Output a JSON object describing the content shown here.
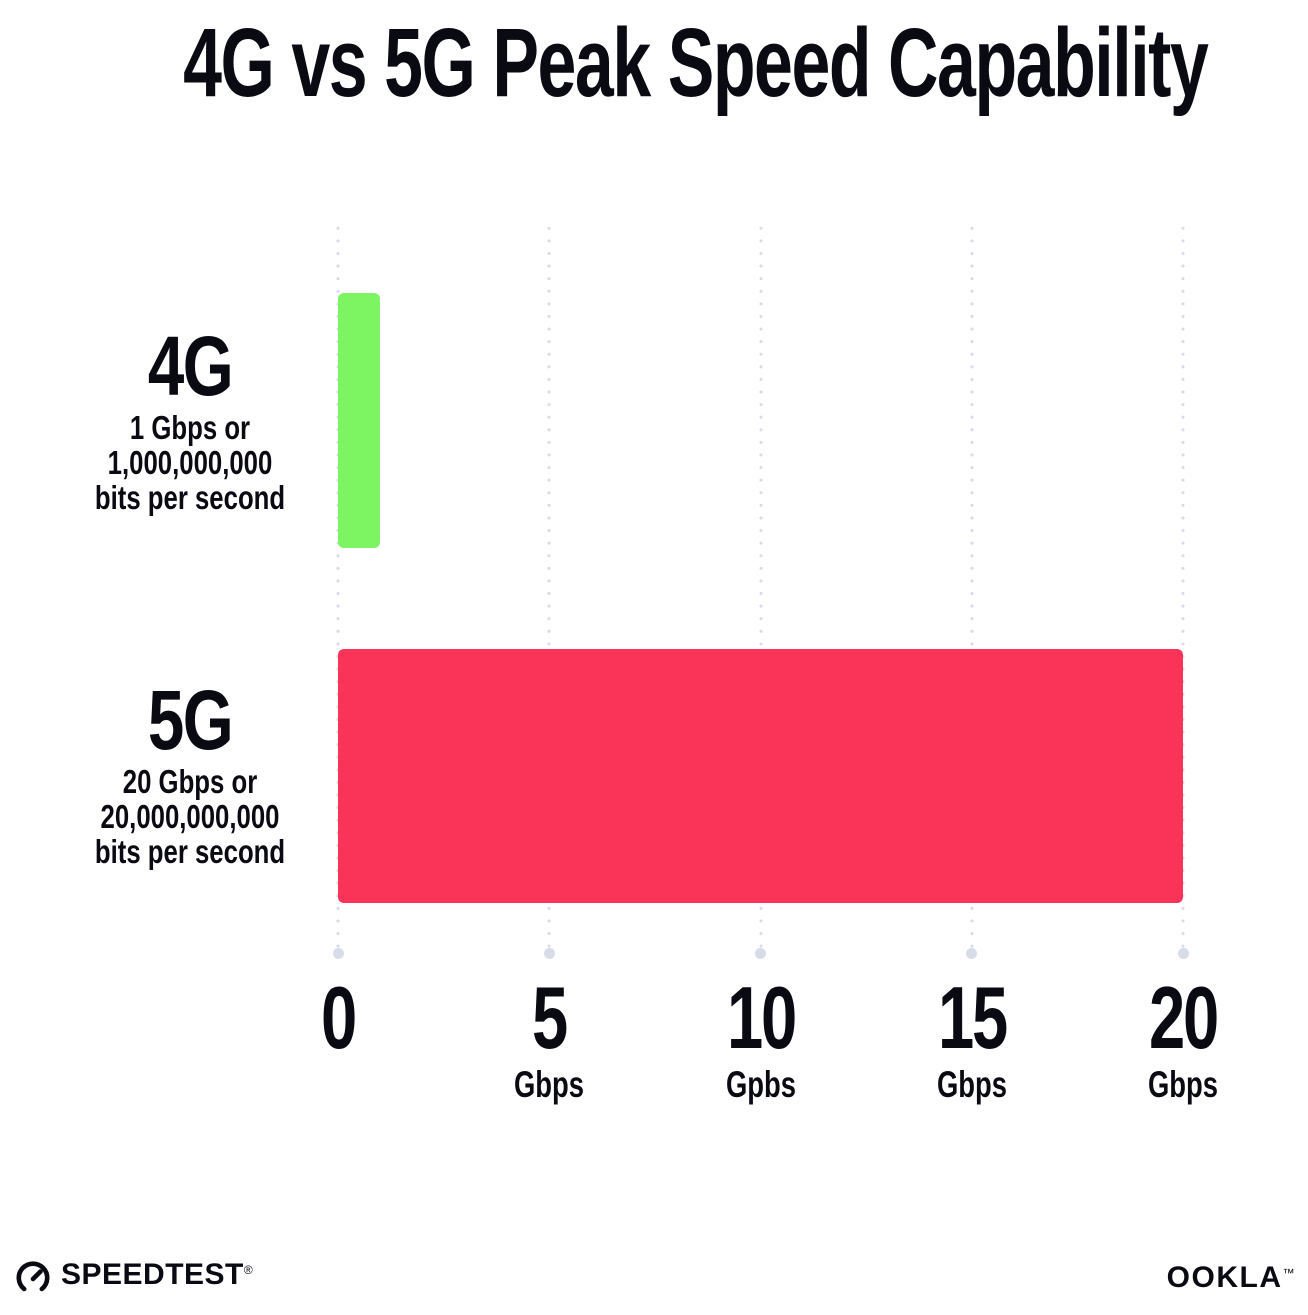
{
  "title": "4G vs 5G Peak Speed Capability",
  "chart_data": {
    "type": "bar",
    "orientation": "horizontal",
    "title": "4G vs 5G Peak Speed Capability",
    "categories": [
      "4G",
      "5G"
    ],
    "values": [
      1,
      20
    ],
    "value_unit": "Gbps",
    "bar_colors": [
      "#7DF562",
      "#FA3359"
    ],
    "row_captions": [
      [
        "1 Gbps or",
        "1,000,000,000",
        "bits per second"
      ],
      [
        "20 Gbps or",
        "20,000,000,000",
        "bits per second"
      ]
    ],
    "xlim": [
      0,
      20
    ],
    "x_ticks": [
      {
        "value": 0,
        "label": "0",
        "unit": ""
      },
      {
        "value": 5,
        "label": "5",
        "unit": "Gbps"
      },
      {
        "value": 10,
        "label": "10",
        "unit": "Gpbs"
      },
      {
        "value": 15,
        "label": "15",
        "unit": "Gbps"
      },
      {
        "value": 20,
        "label": "20",
        "unit": "Gbps"
      }
    ],
    "grid": "dotted vertical gridlines at each tick with round end dot",
    "grid_color": "#D8DCE8",
    "legend": "none",
    "background": "#FFFFFF",
    "text_color": "#0A0A12"
  },
  "footer": {
    "brand_left": "SPEEDTEST",
    "brand_left_mark": "®",
    "brand_left_icon": "speedometer-gauge-icon",
    "brand_right": "OOKLA",
    "brand_right_mark": "™"
  }
}
